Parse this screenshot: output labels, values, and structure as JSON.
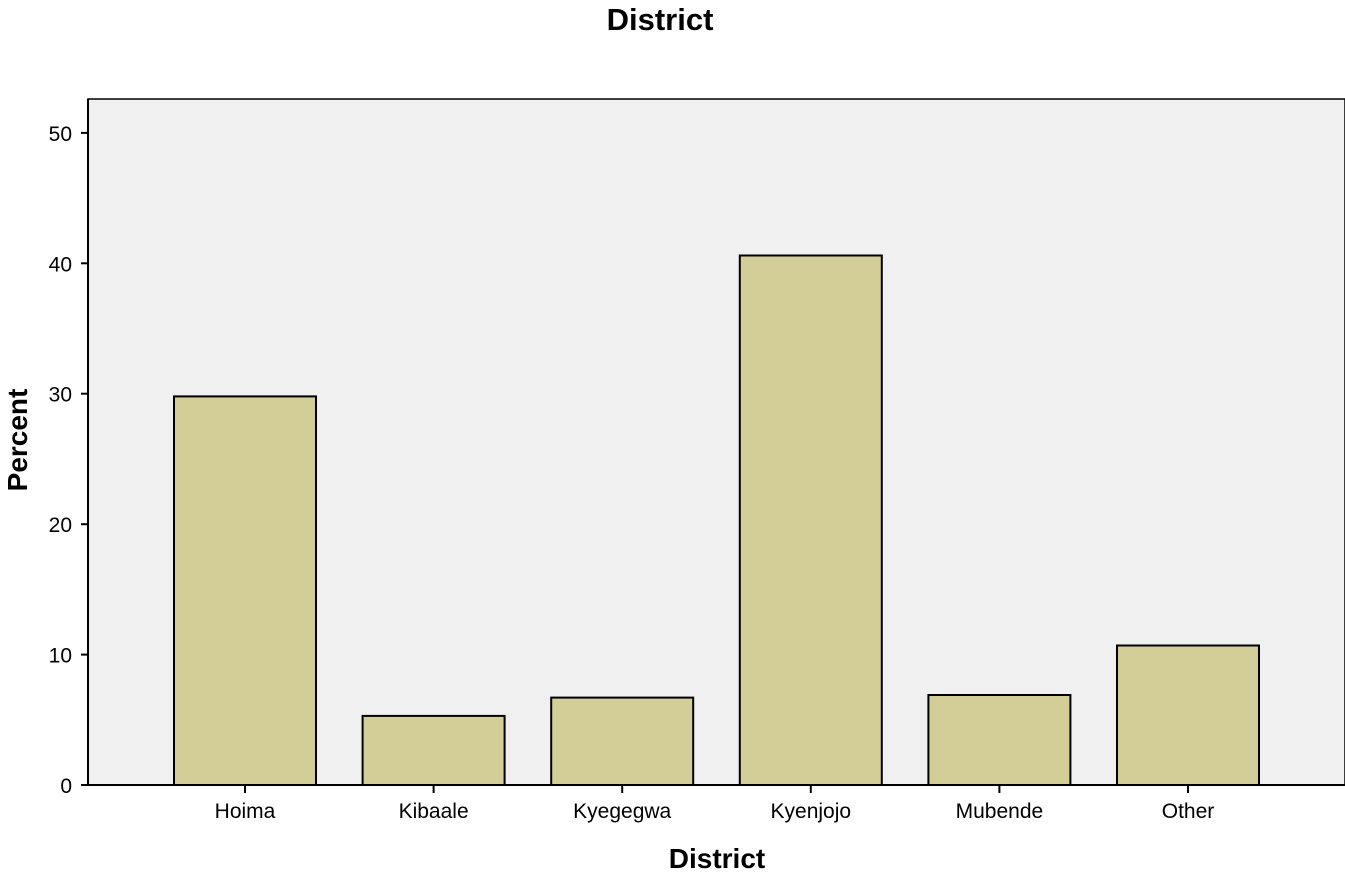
{
  "chart_data": {
    "type": "bar",
    "title": "District",
    "xlabel": "District",
    "ylabel": "Percent",
    "categories": [
      "Hoima",
      "Kibaale",
      "Kyegegwa",
      "Kyenjojo",
      "Mubende",
      "Other"
    ],
    "values": [
      29.8,
      5.3,
      6.7,
      40.6,
      6.9,
      10.7
    ],
    "ylim": [
      0,
      52.6
    ],
    "yticks": [
      0,
      10,
      20,
      30,
      40,
      50
    ],
    "grid": false,
    "colors": {
      "bar_fill": "#d3cd97",
      "plot_background": "#f0f0f0"
    }
  }
}
